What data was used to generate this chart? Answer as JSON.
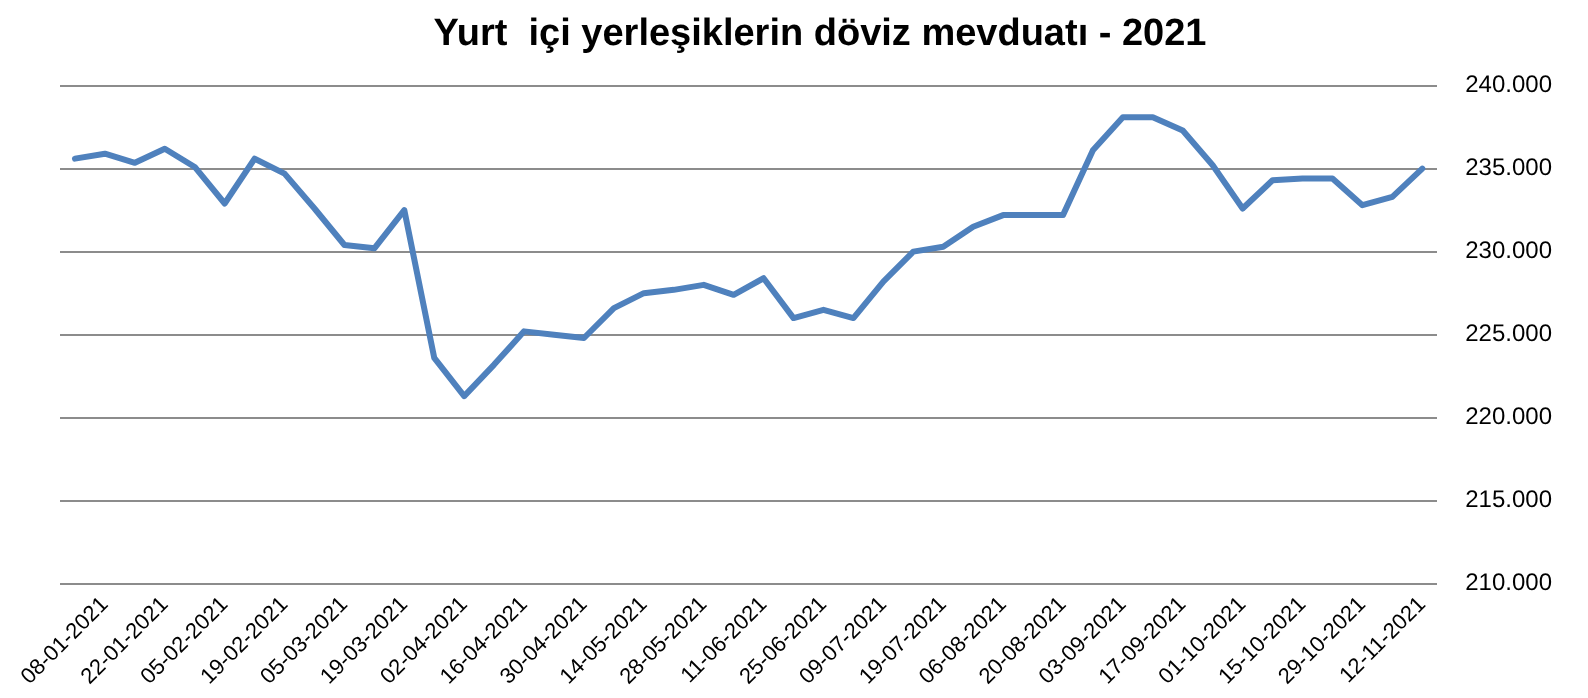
{
  "chart_data": {
    "type": "line",
    "title": "Yurt  içi yerleşiklerin döviz mevduatı - 2021",
    "categories": [
      null,
      "08-01-2021",
      null,
      "22-01-2021",
      null,
      "05-02-2021",
      null,
      "19-02-2021",
      null,
      "05-03-2021",
      null,
      "19-03-2021",
      null,
      "02-04-2021",
      null,
      "16-04-2021",
      null,
      "30-04-2021",
      null,
      "14-05-2021",
      null,
      "28-05-2021",
      null,
      "11-06-2021",
      null,
      "25-06-2021",
      null,
      "09-07-2021",
      null,
      "19-07-2021",
      null,
      "06-08-2021",
      null,
      "20-08-2021",
      null,
      "03-09-2021",
      null,
      "17-09-2021",
      null,
      "01-10-2021",
      null,
      "15-10-2021",
      null,
      "29-10-2021",
      null,
      "12-11-2021"
    ],
    "series": [
      {
        "color": "#4f81bd",
        "values": [
          235600,
          235900,
          235350,
          236200,
          235100,
          232900,
          235600,
          234700,
          232600,
          230400,
          230200,
          232500,
          223600,
          221300,
          223200,
          225200,
          225000,
          224800,
          226600,
          227500,
          227700,
          228000,
          227400,
          228400,
          226000,
          226500,
          226000,
          228200,
          230000,
          230300,
          231500,
          232200,
          232200,
          232200,
          236100,
          238100,
          238100,
          237300,
          235200,
          232600,
          234300,
          234400,
          234400,
          232800,
          233300,
          235000
        ]
      }
    ],
    "ylim": [
      210000,
      240000
    ],
    "yticks": [
      {
        "value": 210000,
        "label": "210.000"
      },
      {
        "value": 215000,
        "label": "215.000"
      },
      {
        "value": 220000,
        "label": "220.000"
      },
      {
        "value": 225000,
        "label": "225.000"
      },
      {
        "value": 230000,
        "label": "230.000"
      },
      {
        "value": 235000,
        "label": "235.000"
      },
      {
        "value": 240000,
        "label": "240.000"
      }
    ],
    "grid": "y",
    "legend": false,
    "marker": "none",
    "line_style": "solid"
  }
}
